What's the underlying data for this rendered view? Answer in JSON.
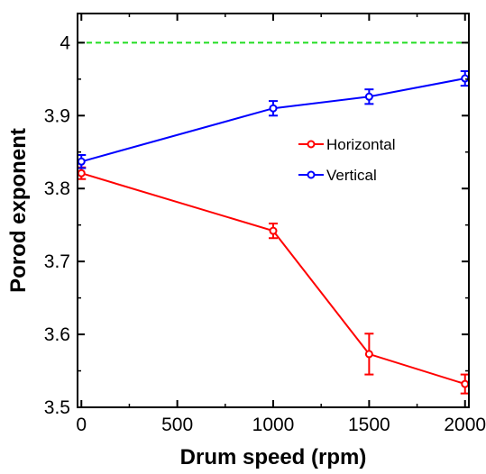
{
  "chart_data": {
    "type": "line",
    "title": "",
    "xlabel": "Drum speed (rpm)",
    "ylabel": "Porod exponent",
    "xlim": [
      -20,
      2020
    ],
    "ylim": [
      3.5,
      4.04
    ],
    "x_ticks": [
      0,
      500,
      1000,
      1500,
      2000
    ],
    "x_tick_labels": [
      "0",
      "500",
      "1000",
      "1500",
      "2000"
    ],
    "y_ticks": [
      3.5,
      3.6,
      3.7,
      3.8,
      3.9,
      4.0
    ],
    "y_tick_labels": [
      "3.5",
      "3.6",
      "3.7",
      "3.8",
      "3.9",
      "4"
    ],
    "grid": false,
    "legend_position": "right",
    "series": [
      {
        "name": "Horizontal",
        "color": "#ff0000",
        "x": [
          0,
          1000,
          1500,
          2000
        ],
        "y": [
          3.821,
          3.742,
          3.573,
          3.532
        ],
        "err": [
          0.008,
          0.01,
          0.028,
          0.013
        ]
      },
      {
        "name": "Vertical",
        "color": "#0000ff",
        "x": [
          0,
          1000,
          1500,
          2000
        ],
        "y": [
          3.837,
          3.91,
          3.926,
          3.951
        ],
        "err": [
          0.009,
          0.01,
          0.01,
          0.01
        ]
      }
    ],
    "reference_line": {
      "y": 4.0,
      "color": "#22dd22",
      "style": "dashed"
    }
  }
}
